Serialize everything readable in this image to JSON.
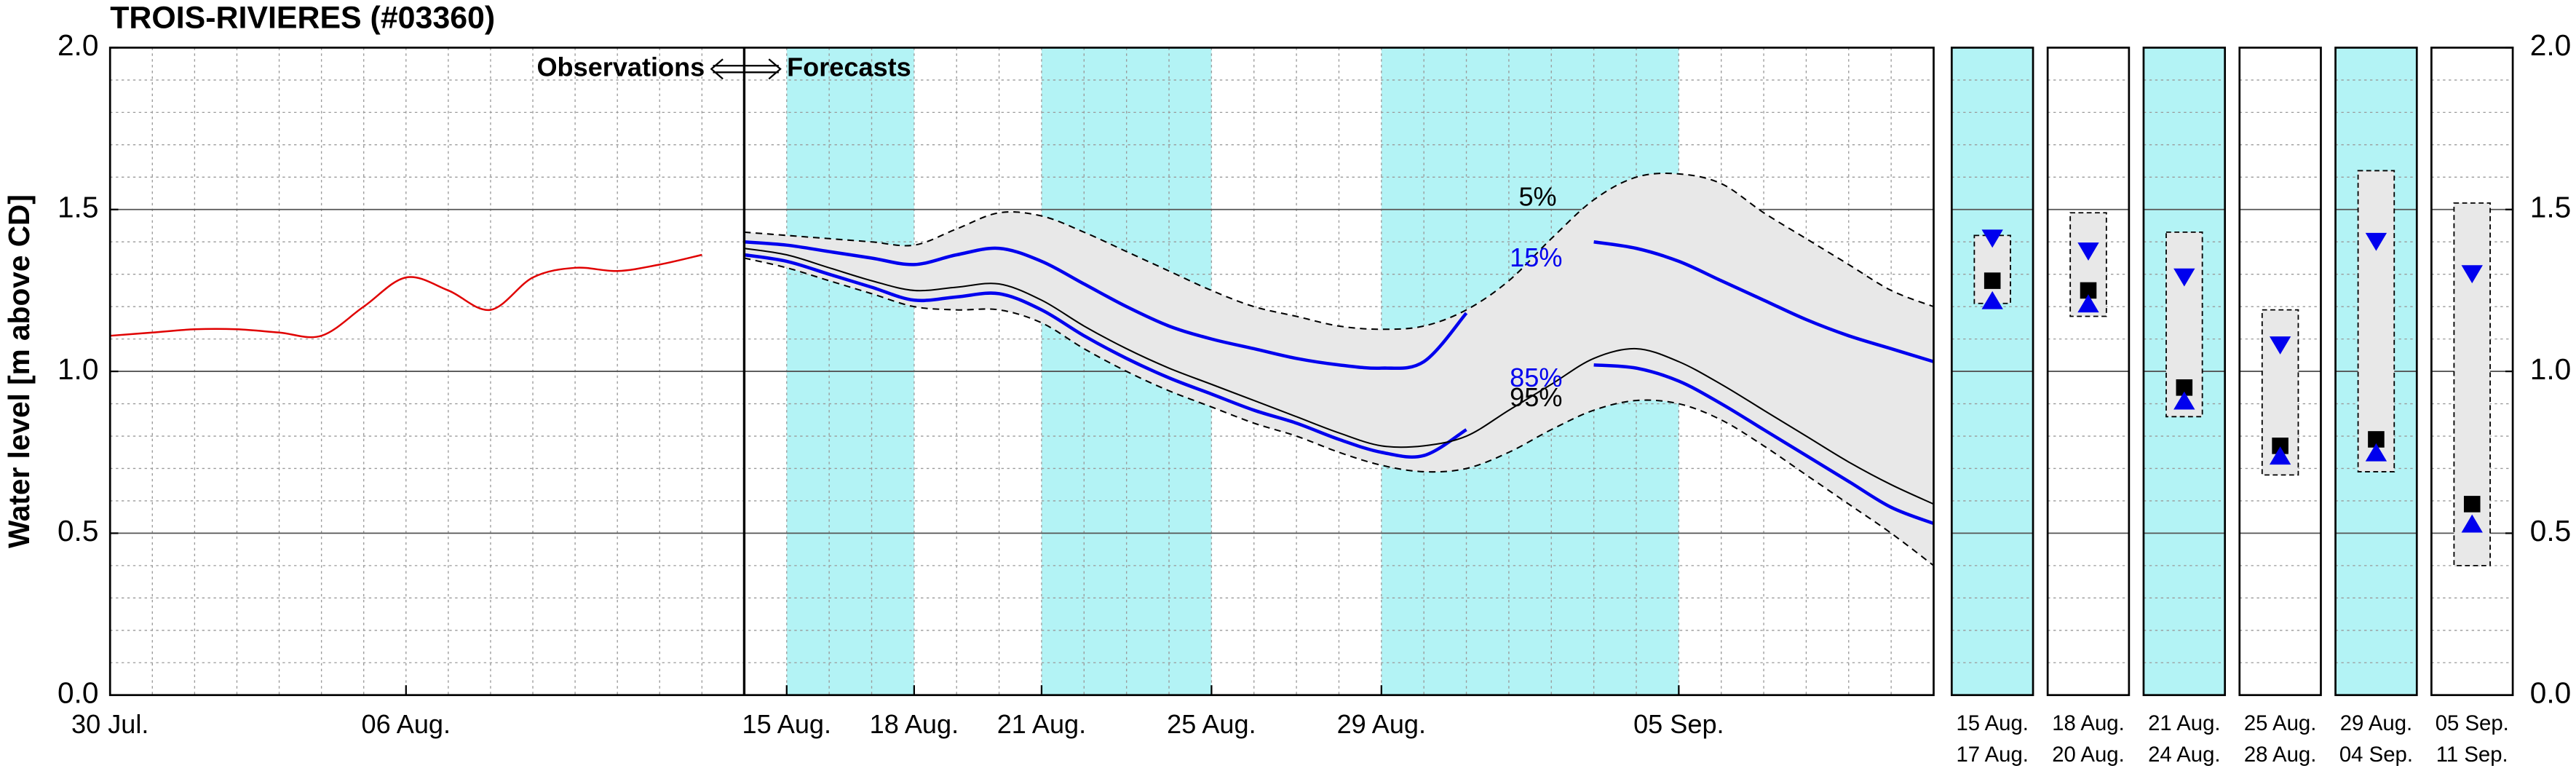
{
  "chart_data": {
    "type": "line",
    "title": "TROIS-RIVIERES (#03360)",
    "y_label": "Water level [m above CD]",
    "ylim": [
      0,
      2
    ],
    "yticks": [
      {
        "value": 0,
        "label": "0.0"
      },
      {
        "value": 0.5,
        "label": "0.5"
      },
      {
        "value": 1,
        "label": "1.0"
      },
      {
        "value": 1.5,
        "label": "1.5"
      },
      {
        "value": 2,
        "label": "2.0"
      }
    ],
    "grid": true,
    "minor_grid": true,
    "shade_color": "#b3f3f5",
    "annotations": {
      "left": "Observations",
      "right": "Forecasts"
    },
    "observations": {
      "xlim": [
        "07-30",
        "08-14"
      ],
      "xticks": [
        {
          "value": "07-30",
          "label": "30 Jul."
        },
        {
          "value": "08-06",
          "label": "06 Aug."
        }
      ],
      "color": "#e00000",
      "x": [
        "07-30",
        "07-31",
        "08-01",
        "08-02",
        "08-03",
        "08-04",
        "08-05",
        "08-06",
        "08-07",
        "08-08",
        "08-09",
        "08-10",
        "08-11",
        "08-12",
        "08-13"
      ],
      "values": [
        1.11,
        1.12,
        1.13,
        1.13,
        1.12,
        1.11,
        1.2,
        1.29,
        1.25,
        1.19,
        1.29,
        1.32,
        1.31,
        1.33,
        1.36
      ]
    },
    "forecast": {
      "xlim": [
        "08-14",
        "09-11"
      ],
      "xticks": [
        {
          "value": "08-15",
          "label": "15 Aug."
        },
        {
          "value": "08-18",
          "label": "18 Aug."
        },
        {
          "value": "08-21",
          "label": "21 Aug."
        },
        {
          "value": "08-25",
          "label": "25 Aug."
        },
        {
          "value": "08-29",
          "label": "29 Aug."
        },
        {
          "value": "09-05",
          "label": "05 Sep."
        }
      ],
      "band_color": "#e8e8e8",
      "x": [
        "08-14",
        "08-15",
        "08-16",
        "08-17",
        "08-18",
        "08-19",
        "08-20",
        "08-21",
        "08-22",
        "08-23",
        "08-24",
        "08-25",
        "08-26",
        "08-27",
        "08-28",
        "08-29",
        "08-30",
        "08-31",
        "09-01",
        "09-02",
        "09-03",
        "09-04",
        "09-05",
        "09-06",
        "09-07",
        "09-08",
        "09-09",
        "09-10",
        "09-11"
      ],
      "series": [
        {
          "name": "5%",
          "color": "#000000",
          "dashed": true,
          "values": [
            1.43,
            1.42,
            1.41,
            1.4,
            1.39,
            1.44,
            1.49,
            1.48,
            1.43,
            1.37,
            1.31,
            1.25,
            1.2,
            1.17,
            1.14,
            1.13,
            1.14,
            1.19,
            1.28,
            1.41,
            1.53,
            1.6,
            1.61,
            1.58,
            1.49,
            1.41,
            1.33,
            1.25,
            1.2
          ]
        },
        {
          "name": "15%",
          "color": "#0000ee",
          "dashed": false,
          "values": [
            1.4,
            1.39,
            1.37,
            1.35,
            1.33,
            1.36,
            1.38,
            1.34,
            1.27,
            1.2,
            1.14,
            1.1,
            1.07,
            1.04,
            1.02,
            1.01,
            1.03,
            1.18,
            null,
            null,
            1.4,
            1.38,
            1.34,
            1.28,
            1.22,
            1.16,
            1.11,
            1.07,
            1.03
          ]
        },
        {
          "name": "85%",
          "color": "#0000ee",
          "dashed": false,
          "values": [
            1.36,
            1.34,
            1.3,
            1.26,
            1.22,
            1.23,
            1.24,
            1.19,
            1.11,
            1.04,
            0.98,
            0.93,
            0.88,
            0.84,
            0.79,
            0.75,
            0.74,
            0.82,
            null,
            null,
            1.02,
            1.01,
            0.97,
            0.9,
            0.82,
            0.74,
            0.66,
            0.58,
            0.53
          ]
        },
        {
          "name": "95%",
          "color": "#000000",
          "dashed": false,
          "values": [
            1.38,
            1.36,
            1.32,
            1.28,
            1.25,
            1.26,
            1.27,
            1.22,
            1.14,
            1.07,
            1.01,
            0.96,
            0.91,
            0.86,
            0.81,
            0.77,
            0.77,
            0.8,
            0.88,
            0.96,
            1.04,
            1.07,
            1.03,
            0.96,
            0.88,
            0.8,
            0.72,
            0.65,
            0.59
          ]
        }
      ],
      "lower_bound": {
        "color": "#000000",
        "dashed": true,
        "values": [
          1.35,
          1.32,
          1.28,
          1.24,
          1.2,
          1.19,
          1.19,
          1.15,
          1.07,
          1.0,
          0.94,
          0.89,
          0.84,
          0.8,
          0.75,
          0.71,
          0.69,
          0.7,
          0.75,
          0.82,
          0.88,
          0.91,
          0.9,
          0.85,
          0.77,
          0.68,
          0.59,
          0.5,
          0.4
        ]
      }
    },
    "periods": [
      {
        "start": {
          "value": "08-15",
          "label": "15 Aug."
        },
        "end": {
          "value": "08-17",
          "label": "17 Aug."
        },
        "shaded": true,
        "low": 1.21,
        "high": 1.42,
        "square": 1.28,
        "down": 1.41,
        "up": 1.22
      },
      {
        "start": {
          "value": "08-18",
          "label": "18 Aug."
        },
        "end": {
          "value": "08-20",
          "label": "20 Aug."
        },
        "shaded": false,
        "low": 1.17,
        "high": 1.49,
        "square": 1.25,
        "down": 1.37,
        "up": 1.21
      },
      {
        "start": {
          "value": "08-21",
          "label": "21 Aug."
        },
        "end": {
          "value": "08-24",
          "label": "24 Aug."
        },
        "shaded": true,
        "low": 0.86,
        "high": 1.43,
        "square": 0.95,
        "down": 1.29,
        "up": 0.91
      },
      {
        "start": {
          "value": "08-25",
          "label": "25 Aug."
        },
        "end": {
          "value": "08-28",
          "label": "28 Aug."
        },
        "shaded": false,
        "low": 0.68,
        "high": 1.19,
        "square": 0.77,
        "down": 1.08,
        "up": 0.74
      },
      {
        "start": {
          "value": "08-29",
          "label": "29 Aug."
        },
        "end": {
          "value": "09-04",
          "label": "04 Sep."
        },
        "shaded": true,
        "low": 0.69,
        "high": 1.62,
        "square": 0.79,
        "down": 1.4,
        "up": 0.75
      },
      {
        "start": {
          "value": "09-05",
          "label": "05 Sep."
        },
        "end": {
          "value": "09-11",
          "label": "11 Sep."
        },
        "shaded": false,
        "low": 0.4,
        "high": 1.52,
        "square": 0.59,
        "down": 1.3,
        "up": 0.53
      }
    ]
  }
}
